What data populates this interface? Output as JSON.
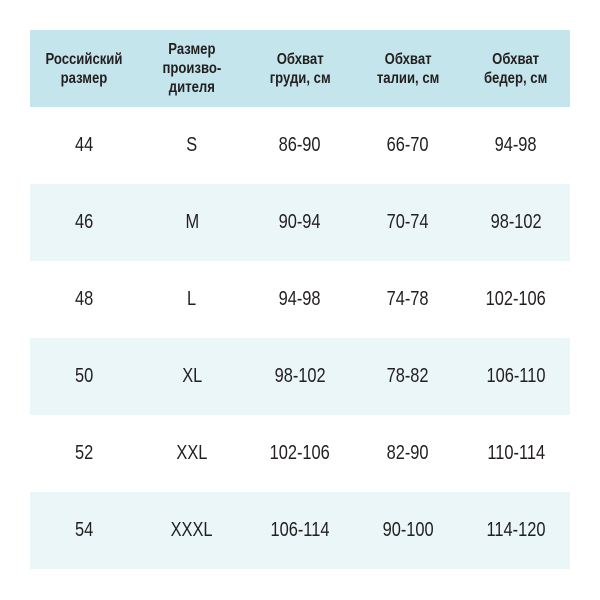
{
  "header": [
    "Российский\nразмер",
    "Размер\nпроизво-\nдителя",
    "Обхват\nгруди, см",
    "Обхват\nталии, см",
    "Обхват\nбедер, см"
  ],
  "rows": [
    [
      "44",
      "S",
      "86-90",
      "66-70",
      "94-98"
    ],
    [
      "46",
      "M",
      "90-94",
      "70-74",
      "98-102"
    ],
    [
      "48",
      "L",
      "94-98",
      "74-78",
      "102-106"
    ],
    [
      "50",
      "XL",
      "98-102",
      "78-82",
      "106-110"
    ],
    [
      "52",
      "XXL",
      "102-106",
      "82-90",
      "110-114"
    ],
    [
      "54",
      "XXXL",
      "106-114",
      "90-100",
      "114-120"
    ]
  ],
  "colors": {
    "header_bg": "#c3e5eb",
    "alt_row_bg": "#ebf6f8"
  }
}
